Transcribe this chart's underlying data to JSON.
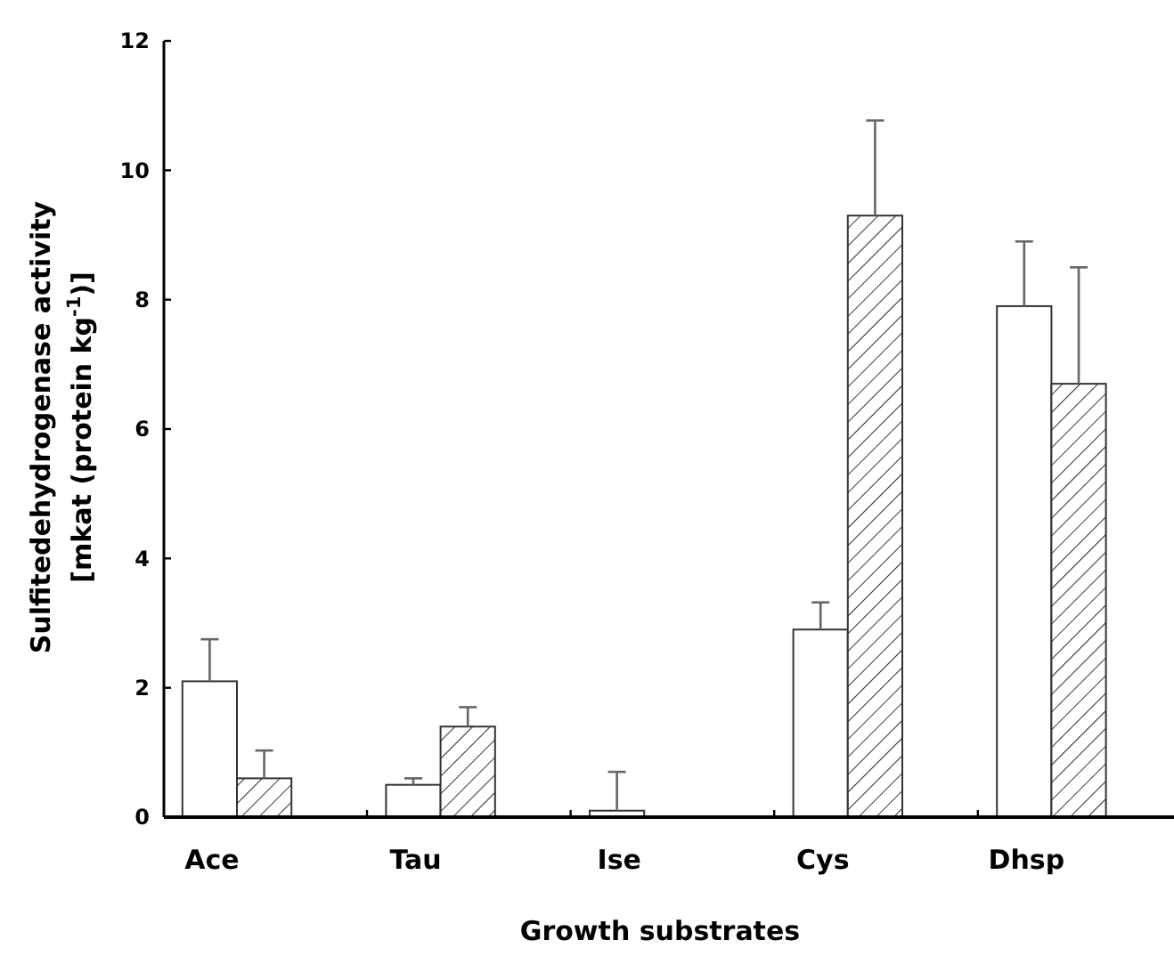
{
  "chart_data": {
    "type": "bar",
    "xlabel": "Growth substrates",
    "ylabel": "Sulfitedehydrogenase activity\n[mkat (protein kg$^{-1}$)]",
    "categories": [
      "Ace",
      "Tau",
      "Ise",
      "Cys",
      "Dhsp"
    ],
    "series": [
      {
        "color": "#ffffff",
        "values": [
          2.1,
          0.5,
          0.1,
          2.9,
          7.9
        ],
        "errors": [
          0.65,
          0.1,
          0.6,
          0.42,
          1.0
        ]
      },
      {
        "color": "#333333",
        "values": [
          0.6,
          1.4,
          null,
          9.3,
          6.7
        ],
        "errors": [
          0.43,
          0.3,
          null,
          1.47,
          1.8
        ]
      }
    ],
    "ylim": [
      0,
      12
    ],
    "yticks": [
      0,
      2,
      4,
      6,
      8,
      10,
      12
    ],
    "grid": false
  }
}
